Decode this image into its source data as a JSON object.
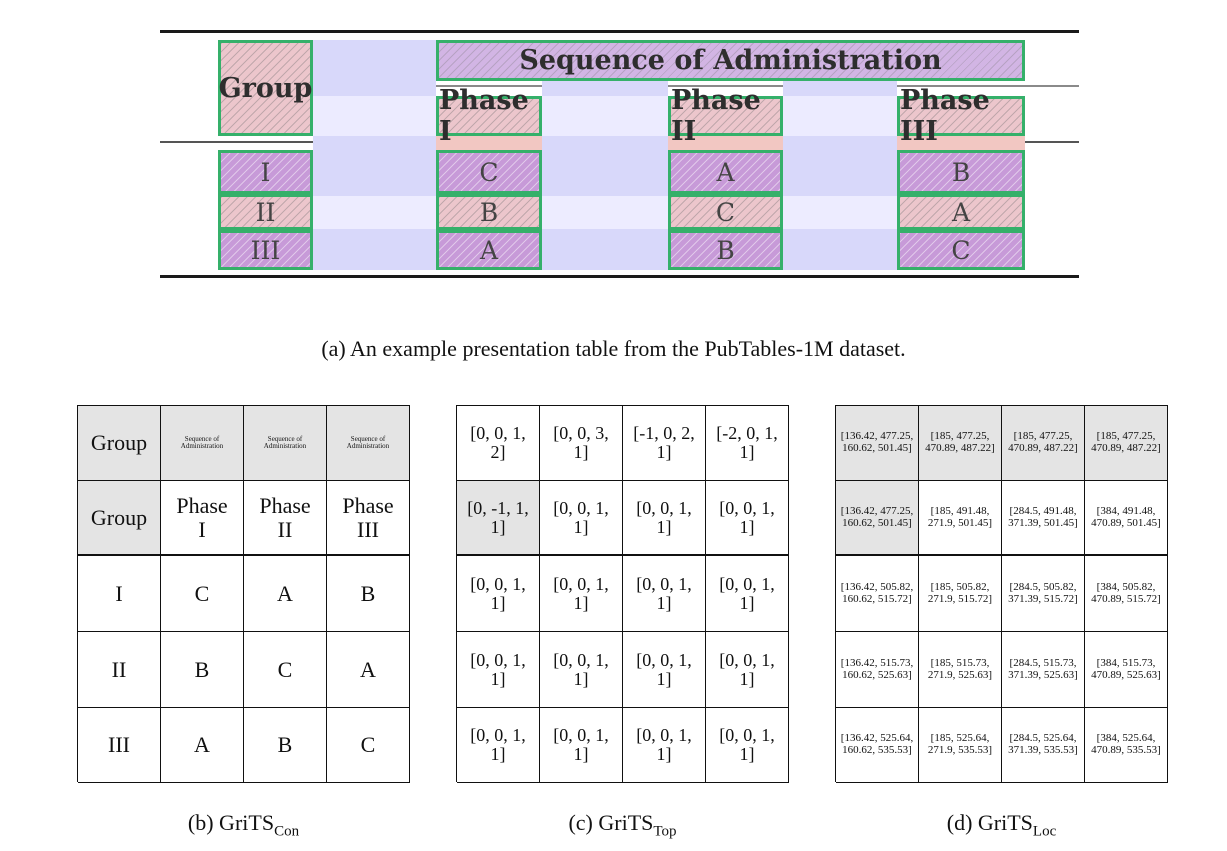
{
  "figure_a": {
    "group_header": "Group",
    "sequence_header": "Sequence of Administration",
    "phases": [
      "Phase I",
      "Phase II",
      "Phase III"
    ],
    "groups": [
      "I",
      "II",
      "III"
    ],
    "cells": [
      [
        "C",
        "A",
        "B"
      ],
      [
        "B",
        "C",
        "A"
      ],
      [
        "A",
        "B",
        "C"
      ]
    ],
    "caption": "(a) An example presentation table from the PubTables-1M dataset."
  },
  "figure_b": {
    "rows": [
      [
        "Group",
        "Sequence of Administration",
        "Sequence of Administration",
        "Sequence of Administration"
      ],
      [
        "Group",
        "Phase I",
        "Phase II",
        "Phase III"
      ],
      [
        "I",
        "C",
        "A",
        "B"
      ],
      [
        "II",
        "B",
        "C",
        "A"
      ],
      [
        "III",
        "A",
        "B",
        "C"
      ]
    ],
    "caption_main": "(b) GriTS",
    "caption_sub": "Con"
  },
  "figure_c": {
    "rows": [
      [
        "[0, 0, 1, 2]",
        "[0, 0, 3, 1]",
        "[-1, 0, 2, 1]",
        "[-2, 0, 1, 1]"
      ],
      [
        "[0, -1, 1, 1]",
        "[0, 0, 1, 1]",
        "[0, 0, 1, 1]",
        "[0, 0, 1, 1]"
      ],
      [
        "[0, 0, 1, 1]",
        "[0, 0, 1, 1]",
        "[0, 0, 1, 1]",
        "[0, 0, 1, 1]"
      ],
      [
        "[0, 0, 1, 1]",
        "[0, 0, 1, 1]",
        "[0, 0, 1, 1]",
        "[0, 0, 1, 1]"
      ],
      [
        "[0, 0, 1, 1]",
        "[0, 0, 1, 1]",
        "[0, 0, 1, 1]",
        "[0, 0, 1, 1]"
      ]
    ],
    "caption_main": "(c) GriTS",
    "caption_sub": "Top"
  },
  "figure_d": {
    "rows": [
      [
        "[136.42, 477.25, 160.62, 501.45]",
        "[185, 477.25, 470.89, 487.22]",
        "[185, 477.25, 470.89, 487.22]",
        "[185, 477.25, 470.89, 487.22]"
      ],
      [
        "[136.42, 477.25, 160.62, 501.45]",
        "[185, 491.48, 271.9, 501.45]",
        "[284.5, 491.48, 371.39, 501.45]",
        "[384, 491.48, 470.89, 501.45]"
      ],
      [
        "[136.42, 505.82, 160.62, 515.72]",
        "[185, 505.82, 271.9, 515.72]",
        "[284.5, 505.82, 371.39, 515.72]",
        "[384, 505.82, 470.89, 515.72]"
      ],
      [
        "[136.42, 515.73, 160.62, 525.63]",
        "[185, 515.73, 271.9, 525.63]",
        "[284.5, 515.73, 371.39, 525.63]",
        "[384, 515.73, 470.89, 525.63]"
      ],
      [
        "[136.42, 525.64, 160.62, 535.53]",
        "[185, 525.64, 271.9, 535.53]",
        "[284.5, 525.64, 371.39, 535.53]",
        "[384, 525.64, 470.89, 535.53]"
      ]
    ],
    "caption_main": "(d) GriTS",
    "caption_sub": "Loc"
  }
}
